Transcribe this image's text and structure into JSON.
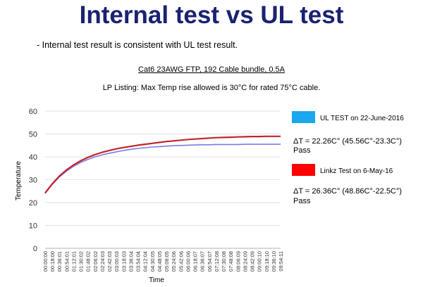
{
  "slide": {
    "title": "Internal test vs UL test",
    "bullet": "- Internal test result is consistent with UL test result.",
    "subtitle": "Cat6 23AWG FTP, 192 Cable bundle, 0.5A",
    "listing": "LP Listing: Max Temp rise allowed is 30°C for rated 75°C cable."
  },
  "legend": [
    {
      "label": "UL TEST on 22-June-2016",
      "delta": "ΔT = 22.26C° (45.56C°-23.3C°)",
      "result": "Pass",
      "color": "#1aa7ec"
    },
    {
      "label": "Linkz Test on 6-May-16",
      "delta": "ΔT = 26.36C° (48.86C°-22.5C°)",
      "result": "Pass",
      "color": "#ff0000"
    }
  ],
  "chart_data": {
    "type": "line",
    "xlabel": "Time",
    "ylabel": "Temperature",
    "ylim": [
      0,
      60
    ],
    "yticks": [
      0,
      10,
      20,
      30,
      40,
      50,
      60
    ],
    "grid": "horizontal",
    "categories": [
      "00:00:00",
      "00:18:00",
      "00:36:01",
      "00:54:01",
      "01:12:01",
      "01:30:02",
      "01:48:02",
      "02:06:02",
      "02:24:03",
      "02:42:03",
      "03:00:03",
      "03:18:03",
      "03:36:04",
      "03:54:04",
      "04:12:04",
      "04:30:05",
      "04:48:05",
      "05:06:05",
      "05:24:06",
      "05:42:06",
      "06:00:06",
      "06:18:07",
      "06:36:07",
      "06:54:07",
      "07:12:08",
      "07:30:08",
      "07:48:08",
      "08:06:09",
      "08:24:09",
      "08:42:09",
      "09:00:10",
      "09:18:10",
      "09:36:10",
      "09:54:11"
    ],
    "series": [
      {
        "color": "#7b7be6",
        "values": [
          24.0,
          27.9,
          31.2,
          33.8,
          35.9,
          37.6,
          38.9,
          40.0,
          40.9,
          41.6,
          42.2,
          42.8,
          43.3,
          43.7,
          44.0,
          44.3,
          44.5,
          44.7,
          44.9,
          45.0,
          45.1,
          45.2,
          45.3,
          45.3,
          45.4,
          45.4,
          45.4,
          45.4,
          45.5,
          45.5,
          45.5,
          45.5,
          45.5,
          45.5
        ]
      },
      {
        "color": "#c0262c",
        "values": [
          24.2,
          28.2,
          31.6,
          34.3,
          36.5,
          38.3,
          39.8,
          41.0,
          42.0,
          42.8,
          43.5,
          44.1,
          44.6,
          45.1,
          45.5,
          45.9,
          46.3,
          46.7,
          47.0,
          47.3,
          47.6,
          47.8,
          48.0,
          48.2,
          48.4,
          48.5,
          48.6,
          48.7,
          48.8,
          48.9,
          48.9,
          49.0,
          49.0,
          49.0
        ]
      }
    ]
  }
}
